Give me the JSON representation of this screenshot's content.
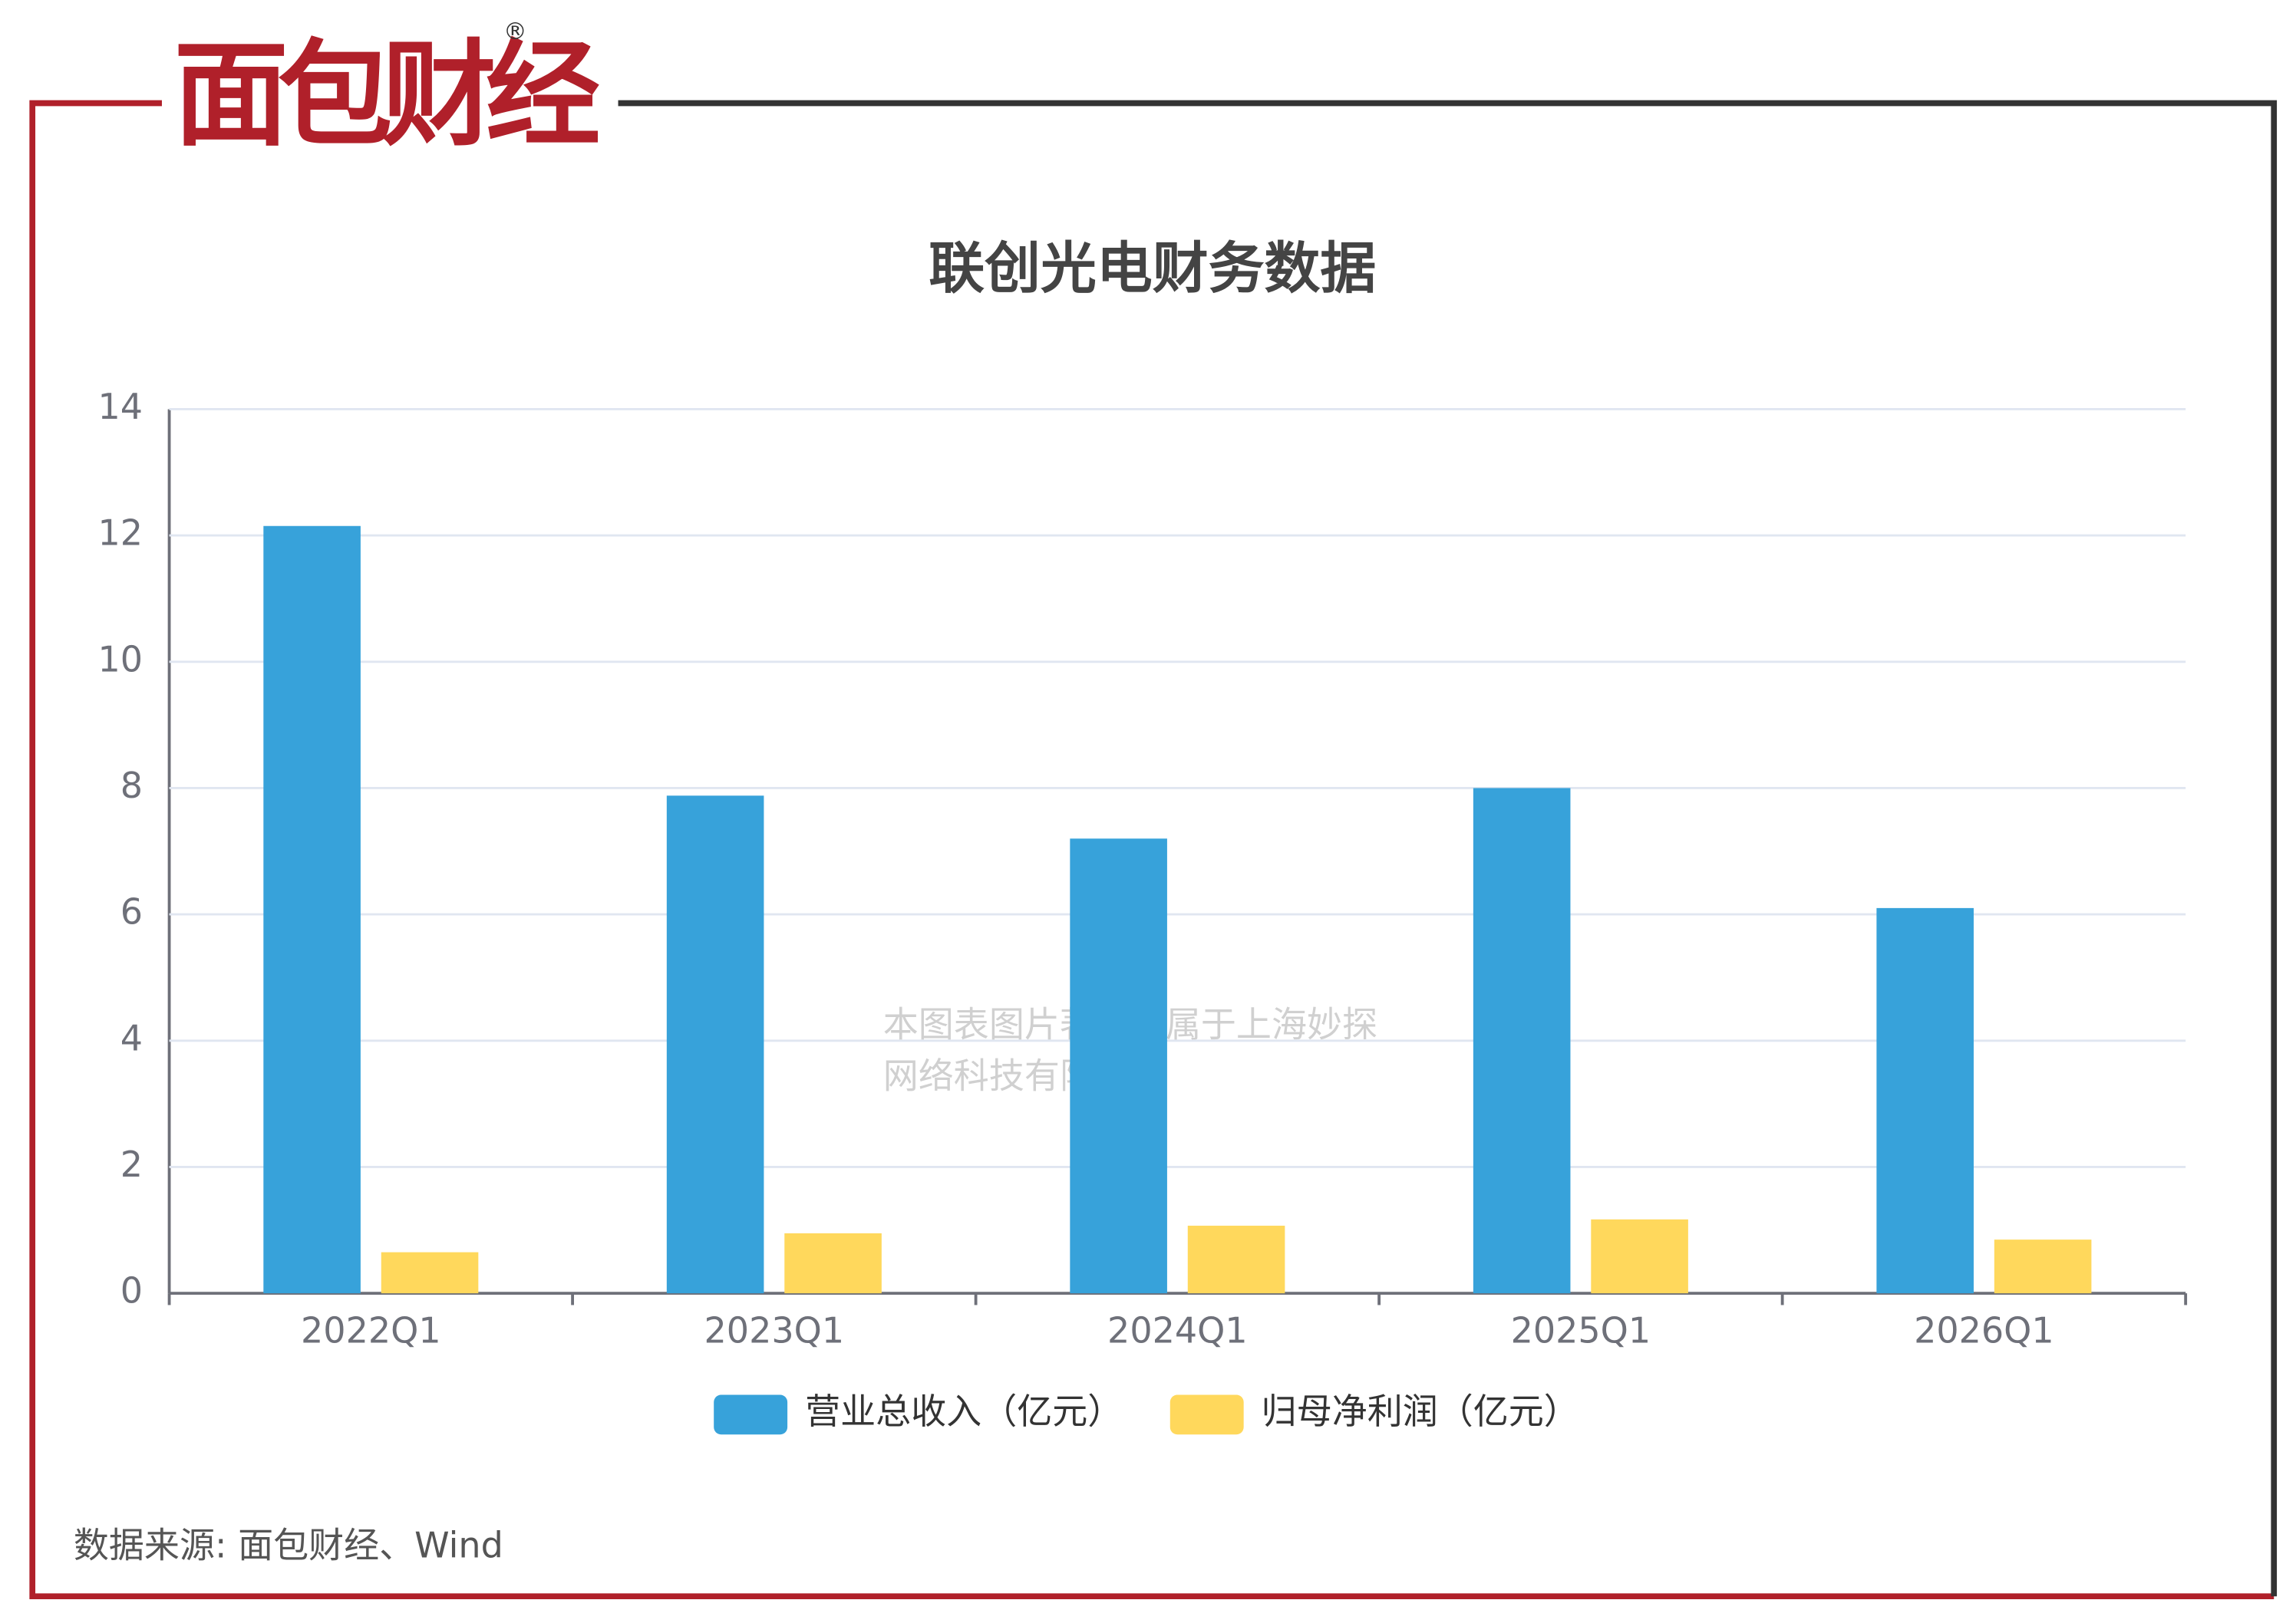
{
  "logo": "面包财经",
  "source": "数据来源: 面包财经、Wind",
  "watermark": [
    "本图表图片著作权属于上海妙探",
    "网络科技有限公司"
  ],
  "chart_data": {
    "type": "bar",
    "title": "联创光电财务数据",
    "categories": [
      "2022Q1",
      "2023Q1",
      "2024Q1",
      "2025Q1",
      "2026Q1"
    ],
    "series": [
      {
        "name": "营业总收入（亿元）",
        "color": "#37a2da",
        "values": [
          12.15,
          7.88,
          7.2,
          8.0,
          6.1
        ]
      },
      {
        "name": "归母净利润（亿元）",
        "color": "#ffd85c",
        "values": [
          0.65,
          0.95,
          1.07,
          1.17,
          0.85
        ]
      }
    ],
    "ylim": [
      0,
      14
    ],
    "yticks": [
      0,
      2,
      4,
      6,
      8,
      10,
      12,
      14
    ],
    "grid": true,
    "legend": "bottom"
  }
}
